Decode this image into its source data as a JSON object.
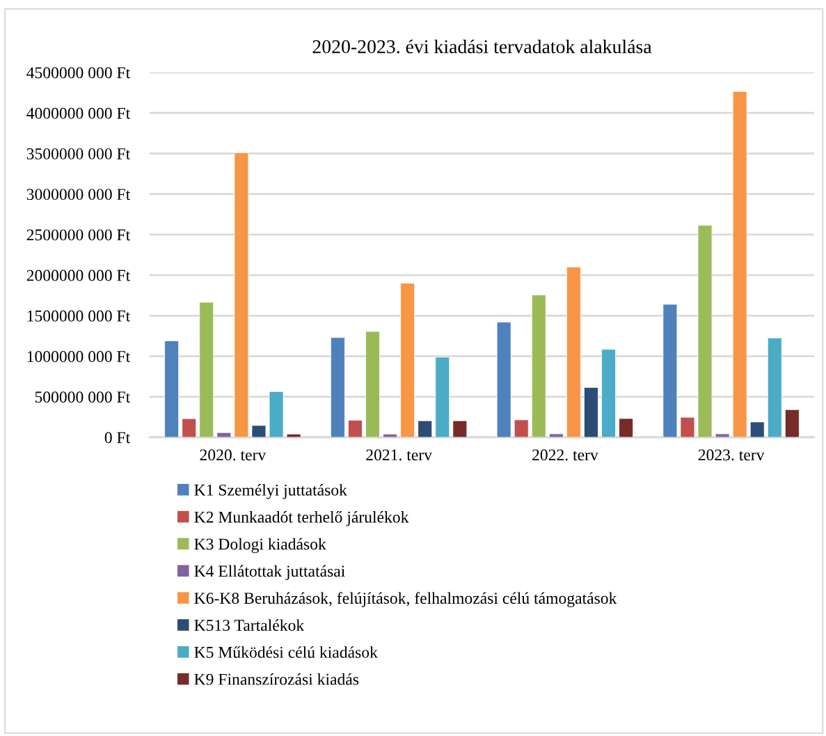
{
  "chart_data": {
    "type": "bar",
    "title": "2020-2023. évi kiadási tervadatok alakulása",
    "categories": [
      "2020. terv",
      "2021. terv",
      "2022. terv",
      "2023. terv"
    ],
    "series": [
      {
        "name": "K1 Személyi juttatások",
        "color": "#4f81bd",
        "values": [
          1190000000,
          1230000000,
          1420000000,
          1640000000
        ]
      },
      {
        "name": "K2 Munkaadót terhelő járulékok",
        "color": "#c0504d",
        "values": [
          230000000,
          210000000,
          215000000,
          247000000
        ]
      },
      {
        "name": "K3 Dologi kiadások",
        "color": "#9bbb59",
        "values": [
          1665000000,
          1305000000,
          1755000000,
          2615000000
        ]
      },
      {
        "name": "K4 Ellátottak juttatásai",
        "color": "#8064a2",
        "values": [
          58000000,
          40000000,
          43000000,
          43000000
        ]
      },
      {
        "name": "K6-K8 Beruházások, felújítások, felhalmozási célú támogatások",
        "color": "#f79646",
        "values": [
          3510000000,
          1900000000,
          2100000000,
          4265000000
        ]
      },
      {
        "name": "K513 Tartalékok",
        "color": "#2c4d75",
        "values": [
          146000000,
          204000000,
          615000000,
          189000000
        ]
      },
      {
        "name": "K5 Működési célú kiadások",
        "color": "#4bacc6",
        "values": [
          564000000,
          988000000,
          1085000000,
          1225000000
        ]
      },
      {
        "name": "K9 Finanszírozási kiadás",
        "color": "#772c2a",
        "values": [
          40000000,
          204000000,
          232000000,
          341000000
        ]
      }
    ],
    "ylim": [
      0,
      4500000000
    ],
    "yticks": [
      {
        "value": 0,
        "label": "0 Ft"
      },
      {
        "value": 500000000,
        "label": "500000 000 Ft"
      },
      {
        "value": 1000000000,
        "label": "1000000 000 Ft"
      },
      {
        "value": 1500000000,
        "label": "1500000 000 Ft"
      },
      {
        "value": 2000000000,
        "label": "2000000 000 Ft"
      },
      {
        "value": 2500000000,
        "label": "2500000 000 Ft"
      },
      {
        "value": 3000000000,
        "label": "3000000 000 Ft"
      },
      {
        "value": 3500000000,
        "label": "3500000 000 Ft"
      },
      {
        "value": 4000000000,
        "label": "4000000 000 Ft"
      },
      {
        "value": 4500000000,
        "label": "4500000 000 Ft"
      }
    ],
    "grid": "y",
    "legend": "bottom"
  }
}
